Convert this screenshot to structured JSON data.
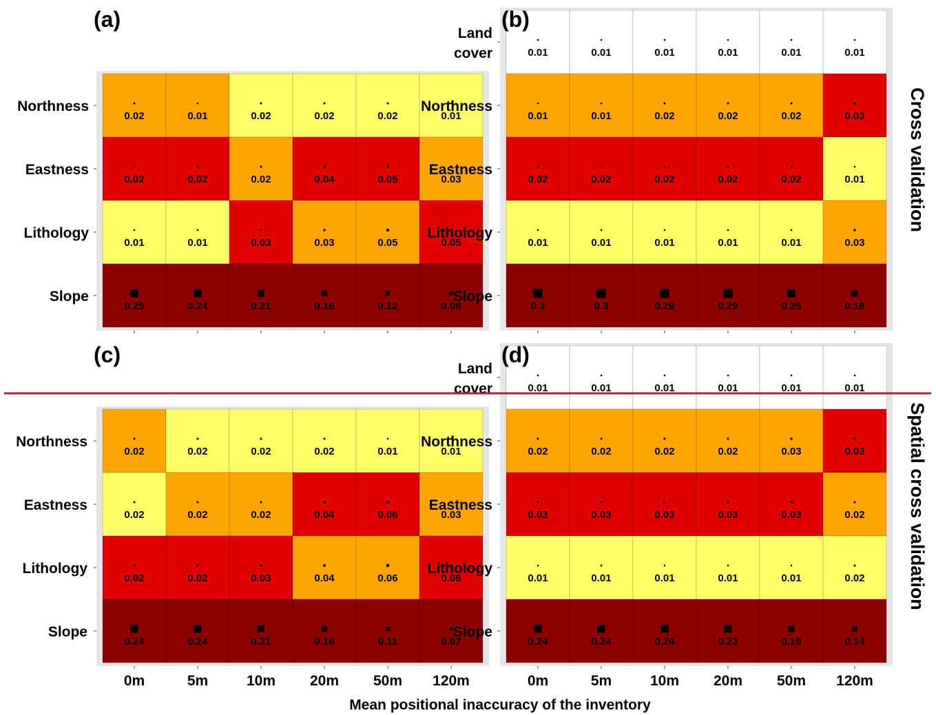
{
  "figure": {
    "x_axis_title": "Mean positional inaccuracy of the inventory",
    "strip_labels": [
      "Cross validation",
      "Spatial cross validation"
    ],
    "colors": {
      "low": "#ffff66",
      "mid": "#ffa500",
      "high": "#e00000",
      "top": "#8b0000",
      "background": "#e6e6e6",
      "marker": "#000000",
      "divider": "#b01c3a"
    }
  },
  "chart_data": [
    {
      "type": "heatmap",
      "panel_label": "(a)",
      "x_categories": [
        "0m",
        "5m",
        "10m",
        "20m",
        "50m",
        "120m"
      ],
      "y_categories": [
        "Northness",
        "Eastness",
        "Lithology",
        "Slope"
      ],
      "values": [
        [
          0.02,
          0.01,
          0.02,
          0.02,
          0.02,
          0.01
        ],
        [
          0.02,
          0.02,
          0.02,
          0.04,
          0.05,
          0.03
        ],
        [
          0.01,
          0.01,
          0.03,
          0.03,
          0.05,
          0.05
        ],
        [
          0.25,
          0.24,
          0.21,
          0.16,
          0.12,
          0.08
        ]
      ],
      "rank": [
        [
          2,
          2,
          1,
          1,
          1,
          1
        ],
        [
          3,
          3,
          2,
          3,
          3,
          2
        ],
        [
          1,
          1,
          3,
          2,
          2,
          3
        ],
        [
          4,
          4,
          4,
          4,
          4,
          4
        ]
      ]
    },
    {
      "type": "heatmap",
      "panel_label": "(b)",
      "x_categories": [
        "0m",
        "5m",
        "10m",
        "20m",
        "50m",
        "120m"
      ],
      "y_categories": [
        "Land cover",
        "Northness",
        "Eastness",
        "Lithology",
        "Slope"
      ],
      "values": [
        [
          0.01,
          0.01,
          0.01,
          0.01,
          0.01,
          0.01
        ],
        [
          0.01,
          0.01,
          0.02,
          0.02,
          0.02,
          0.03
        ],
        [
          0.02,
          0.02,
          0.02,
          0.02,
          0.02,
          0.01
        ],
        [
          0.01,
          0.01,
          0.01,
          0.01,
          0.01,
          0.03
        ],
        [
          0.3,
          0.3,
          0.29,
          0.29,
          0.25,
          0.18
        ]
      ],
      "rank": [
        [
          0,
          0,
          0,
          0,
          0,
          0
        ],
        [
          2,
          2,
          2,
          2,
          2,
          3
        ],
        [
          3,
          3,
          3,
          3,
          3,
          1
        ],
        [
          1,
          1,
          1,
          1,
          1,
          2
        ],
        [
          4,
          4,
          4,
          4,
          4,
          4
        ]
      ]
    },
    {
      "type": "heatmap",
      "panel_label": "(c)",
      "x_categories": [
        "0m",
        "5m",
        "10m",
        "20m",
        "50m",
        "120m"
      ],
      "y_categories": [
        "Northness",
        "Eastness",
        "Lithology",
        "Slope"
      ],
      "values": [
        [
          0.02,
          0.02,
          0.02,
          0.02,
          0.01,
          0.01
        ],
        [
          0.02,
          0.02,
          0.02,
          0.04,
          0.06,
          0.03
        ],
        [
          0.02,
          0.02,
          0.03,
          0.04,
          0.06,
          0.06
        ],
        [
          0.24,
          0.24,
          0.21,
          0.16,
          0.11,
          0.07
        ]
      ],
      "rank": [
        [
          2,
          1,
          1,
          1,
          1,
          1
        ],
        [
          1,
          2,
          2,
          3,
          3,
          2
        ],
        [
          3,
          3,
          3,
          2,
          2,
          3
        ],
        [
          4,
          4,
          4,
          4,
          4,
          4
        ]
      ]
    },
    {
      "type": "heatmap",
      "panel_label": "(d)",
      "x_categories": [
        "0m",
        "5m",
        "10m",
        "20m",
        "50m",
        "120m"
      ],
      "y_categories": [
        "Land cover",
        "Northness",
        "Eastness",
        "Lithology",
        "Slope"
      ],
      "values": [
        [
          0.01,
          0.01,
          0.01,
          0.01,
          0.01,
          0.01
        ],
        [
          0.02,
          0.02,
          0.02,
          0.02,
          0.03,
          0.03
        ],
        [
          0.03,
          0.03,
          0.03,
          0.03,
          0.03,
          0.02
        ],
        [
          0.01,
          0.01,
          0.01,
          0.01,
          0.01,
          0.02
        ],
        [
          0.24,
          0.24,
          0.24,
          0.23,
          0.19,
          0.14
        ]
      ],
      "rank": [
        [
          0,
          0,
          0,
          0,
          0,
          0
        ],
        [
          2,
          2,
          2,
          2,
          2,
          3
        ],
        [
          3,
          3,
          3,
          3,
          3,
          2
        ],
        [
          1,
          1,
          1,
          1,
          1,
          1
        ],
        [
          4,
          4,
          4,
          4,
          4,
          4
        ]
      ]
    }
  ]
}
